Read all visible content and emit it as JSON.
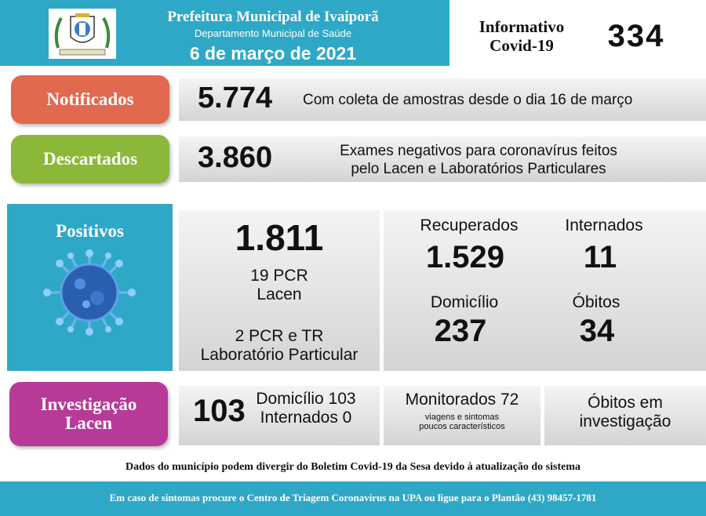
{
  "header": {
    "title": "Prefeitura Municipal de Ivaiporã",
    "subtitle": "Departamento Municipal de Saúde",
    "date": "6 de março de 2021",
    "info_label_1": "Informativo",
    "info_label_2": "Covid-19",
    "bulletin_number": "334"
  },
  "notificados": {
    "label": "Notificados",
    "value": "5.774",
    "description": "Com coleta de amostras desde o dia 16 de março",
    "color": "#e0694f"
  },
  "descartados": {
    "label": "Descartados",
    "value": "3.860",
    "description_1": "Exames negativos para coronavírus feitos",
    "description_2": "pelo Lacen e Laboratórios Particulares",
    "color": "#8cb83a"
  },
  "positivos": {
    "label": "Positivos",
    "value": "1.811",
    "pcr_lacen_1": "19 PCR",
    "pcr_lacen_2": "Lacen",
    "pcr_lab_1": "2 PCR e TR",
    "pcr_lab_2": "Laboratório Particular",
    "color": "#2fa8c7"
  },
  "status": {
    "recuperados_label": "Recuperados",
    "recuperados_value": "1.529",
    "internados_label": "Internados",
    "internados_value": "11",
    "domicilio_label": "Domicílio",
    "domicilio_value": "237",
    "obitos_label": "Óbitos",
    "obitos_value": "34"
  },
  "investigacao": {
    "label_1": "Investigação",
    "label_2": "Lacen",
    "value": "103",
    "domicilio": "Domicílio 103",
    "internados": "Internados 0",
    "monitorados": "Monitorados 72",
    "monitorados_note_1": "viagens e sintomas",
    "monitorados_note_2": "poucos característicos",
    "obitos_1": "Óbitos em",
    "obitos_2": "investigação",
    "color": "#b83a98"
  },
  "disclaimer": "Dados do município podem divergir do Boletim Covid-19 da Sesa devido à atualização do sistema",
  "footer": "Em caso de sintomas procure o Centro de Triagem Coronavírus na UPA ou ligue para o Plantão (43) 98457-1781"
}
